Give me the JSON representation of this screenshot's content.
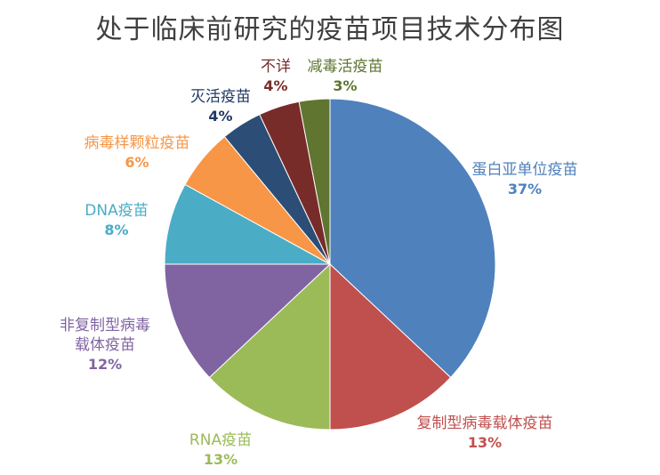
{
  "chart_data": {
    "type": "pie",
    "title": "处于临床前研究的疫苗项目技术分布图",
    "slices": [
      {
        "label": "蛋白亚单位疫苗",
        "value": 37,
        "value_label": "37%",
        "color": "#4F81BD"
      },
      {
        "label": "复制型病毒载体疫苗",
        "value": 13,
        "value_label": "13%",
        "color": "#C0504D"
      },
      {
        "label": "RNA疫苗",
        "value": 13,
        "value_label": "13%",
        "color": "#9BBB59"
      },
      {
        "label": "非复制型病毒载体疫苗",
        "value": 12,
        "value_label": "12%",
        "color": "#8064A2"
      },
      {
        "label": "DNA疫苗",
        "value": 8,
        "value_label": "8%",
        "color": "#4BACC6"
      },
      {
        "label": "病毒样颗粒疫苗",
        "value": 6,
        "value_label": "6%",
        "color": "#F79646"
      },
      {
        "label": "灭活疫苗",
        "value": 4,
        "value_label": "4%",
        "color": "#2C4D75"
      },
      {
        "label": "不详",
        "value": 4,
        "value_label": "4%",
        "color": "#772C2A"
      },
      {
        "label": "减毒活疫苗",
        "value": 3,
        "value_label": "3%",
        "color": "#5F7530"
      }
    ],
    "legend": "none"
  }
}
